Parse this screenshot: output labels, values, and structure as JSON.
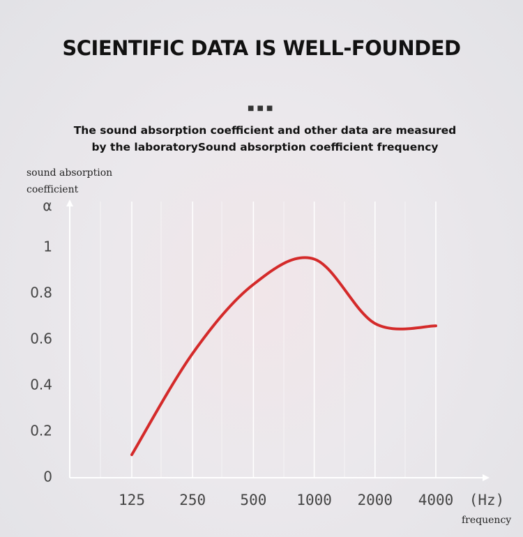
{
  "chart_data": {
    "type": "line",
    "title": "SCIENTIFIC DATA IS WELL-FOUNDED",
    "subtitle": "The sound absorption coefficient and other data are measured by the laboratorySound absorption coefficient frequency",
    "ylabel": "sound absorption coefficient",
    "y_symbol": "α",
    "xlabel": "frequency",
    "x_unit": "(Hz)",
    "categories": [
      "125",
      "250",
      "500",
      "1000",
      "2000",
      "4000"
    ],
    "values": [
      0.1,
      0.54,
      0.84,
      0.95,
      0.67,
      0.66
    ],
    "color": "#d42a2a",
    "ylim": [
      0,
      1.2
    ],
    "yticks": [
      0,
      0.2,
      0.4,
      0.6,
      0.8,
      1
    ],
    "grid": true
  }
}
